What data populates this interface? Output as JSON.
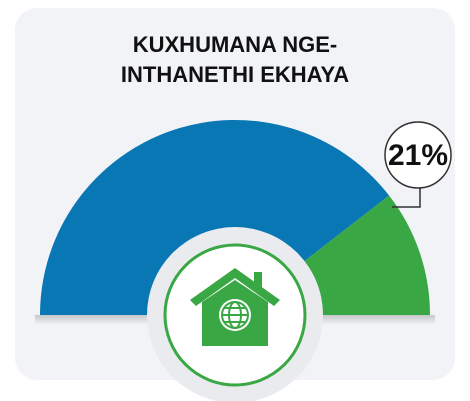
{
  "chart_data": {
    "type": "semi-donut",
    "title": "KUXHUMANA NGE-INTHANETHI EKHAYA",
    "values": [
      79,
      21
    ],
    "value_labels": [
      null,
      "21%"
    ],
    "colors": [
      "#0a77b5",
      "#3aa745"
    ]
  }
}
